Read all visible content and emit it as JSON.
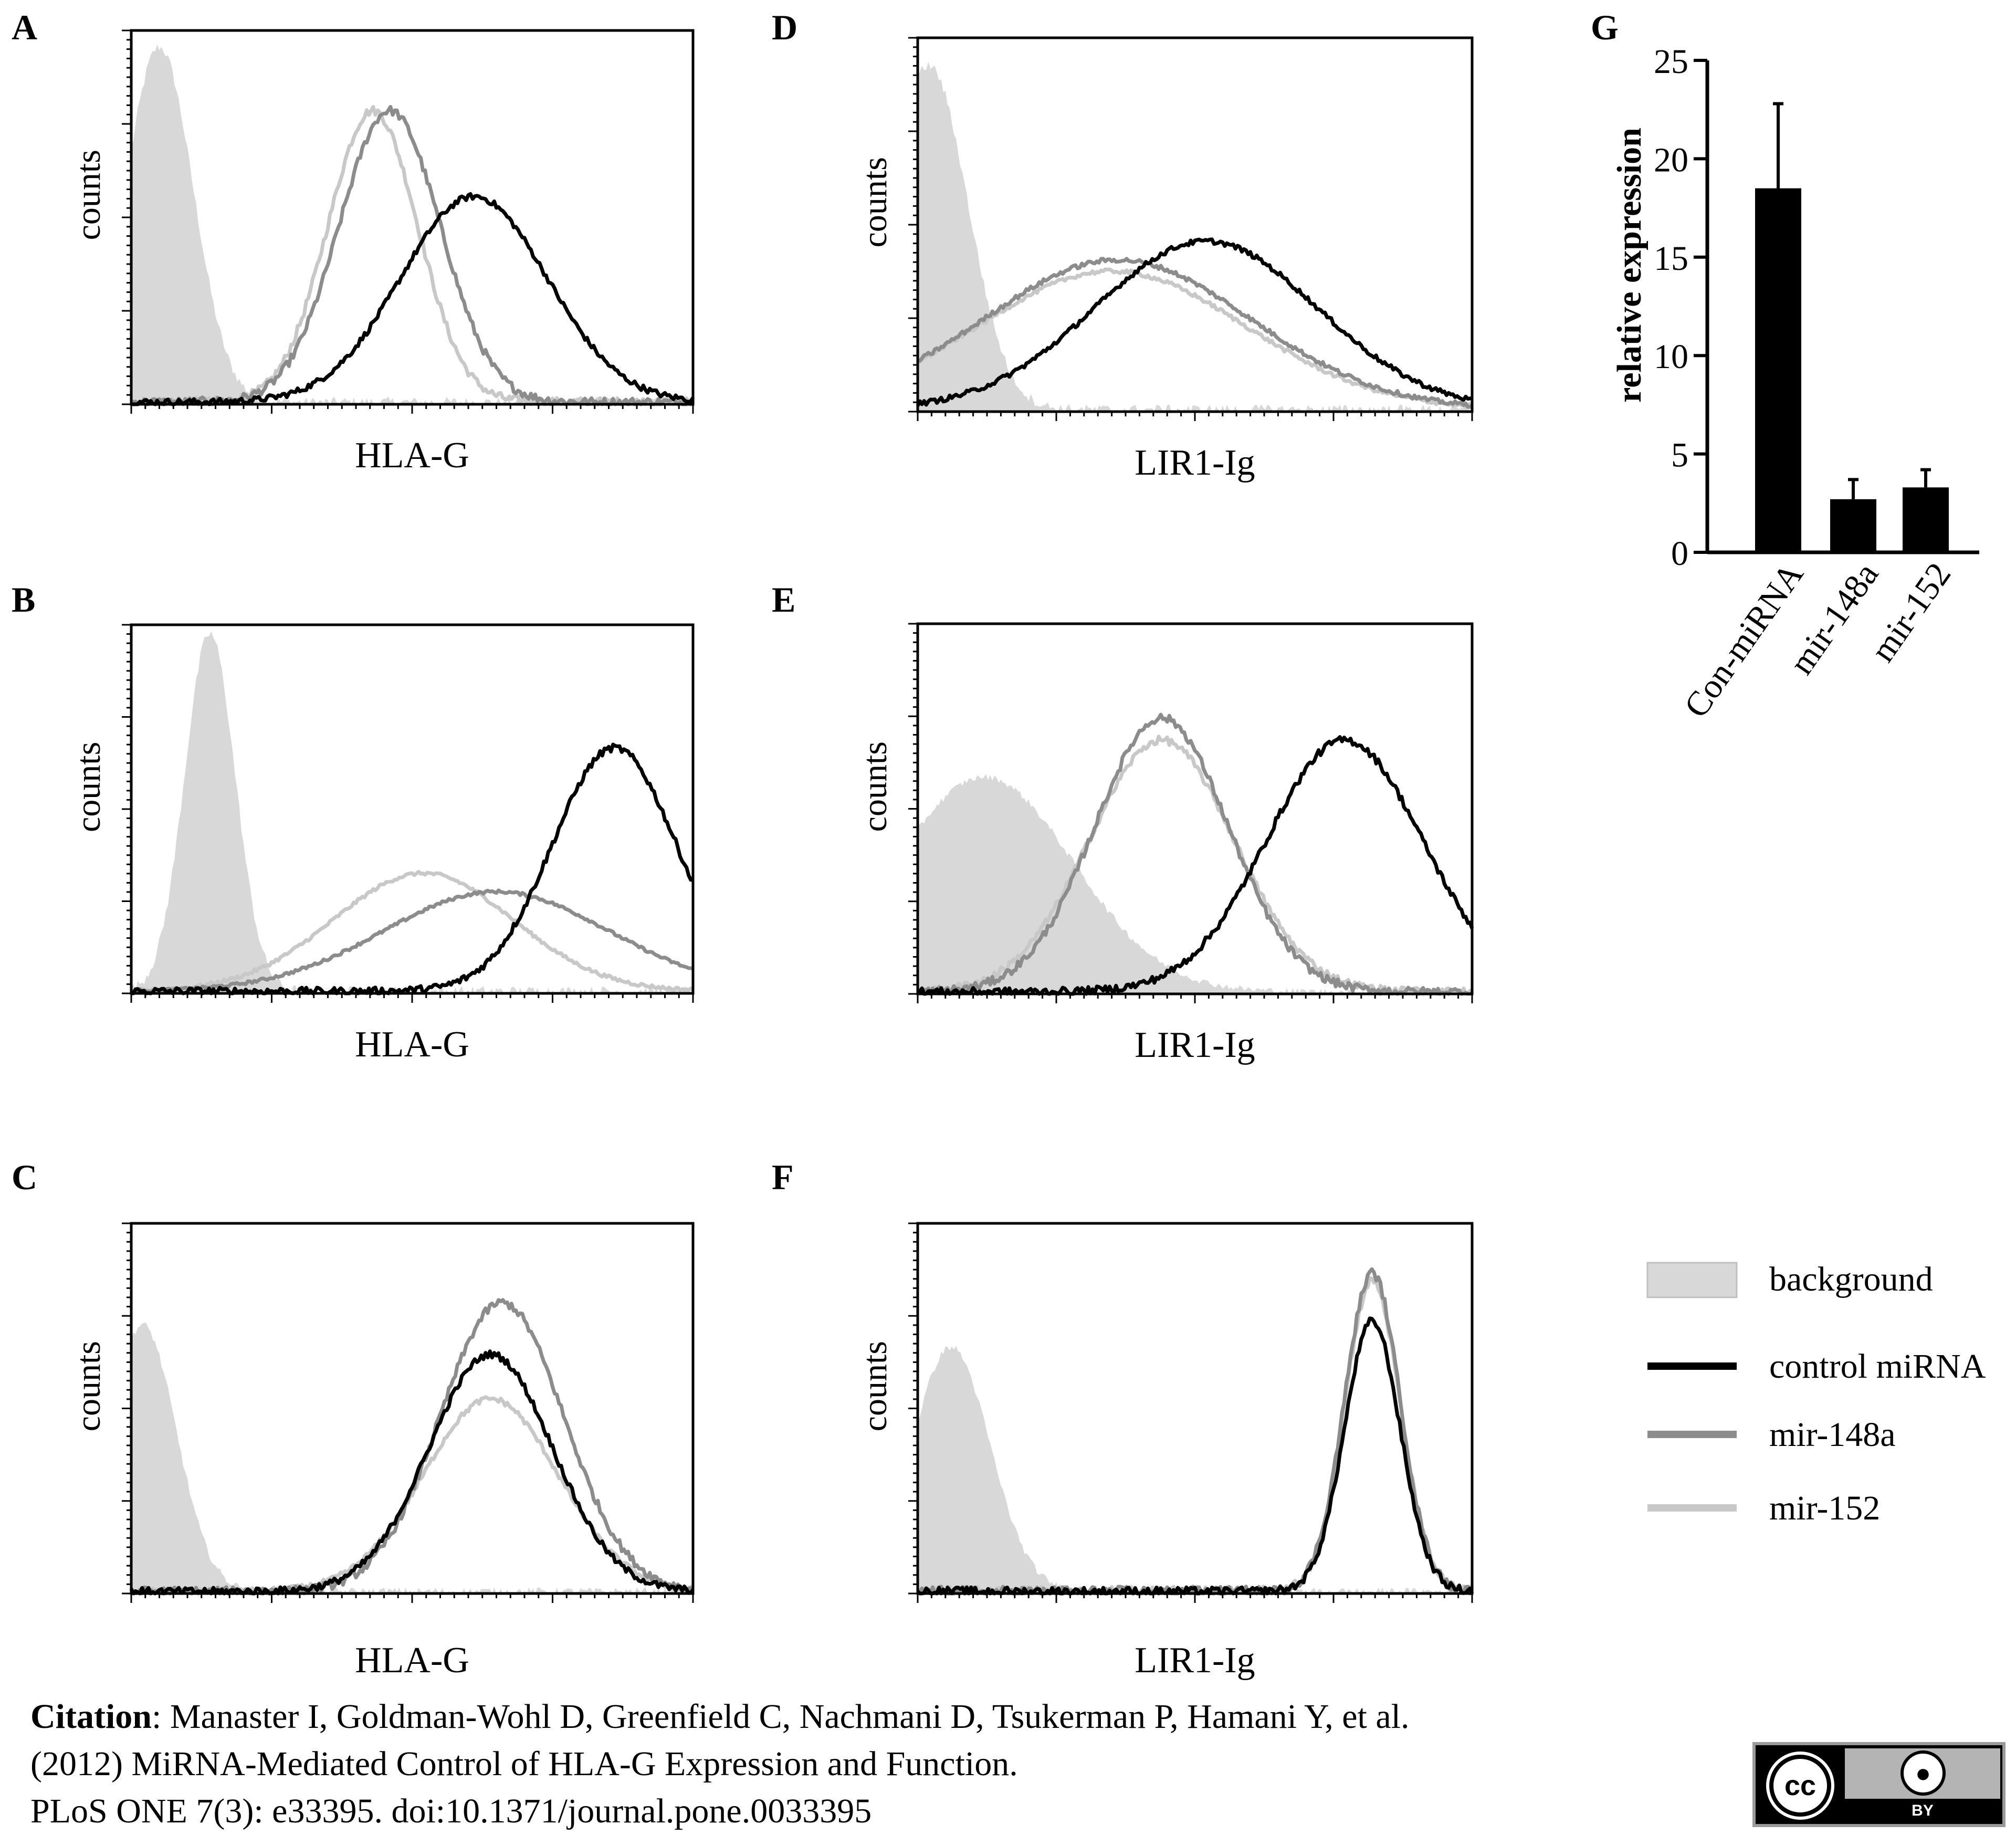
{
  "colors": {
    "background_fill": "#d8d8d8",
    "control": "#000000",
    "mir148a": "#8c8c8c",
    "mir152": "#c8c8c8",
    "bar": "#000000"
  },
  "legend": {
    "background": "background",
    "control": "control miRNA",
    "mir148a": "mir-148a",
    "mir152": "mir-152"
  },
  "citation": {
    "label": "Citation",
    "line1": ": Manaster I, Goldman-Wohl D, Greenfield C, Nachmani D, Tsukerman P, Hamani Y, et al.",
    "line2": "(2012) MiRNA-Mediated Control of HLA-G Expression and Function.",
    "line3": "PLoS ONE 7(3): e33395. doi:10.1371/journal.pone.0033395"
  },
  "license_badge": {
    "cc": "cc",
    "by": "BY"
  },
  "chart_data": [
    {
      "panel": "A",
      "type": "histogram-overlay",
      "ylabel": "counts",
      "xlabel": "HLA-G",
      "note": "background filled at left; mir-152 and mir-148a peak near the middle; control miRNA shifted right",
      "series": [
        {
          "name": "background",
          "peak": 0.05,
          "width": 0.06,
          "height": 0.95
        },
        {
          "name": "mir-152",
          "peak": 0.43,
          "width": 0.08,
          "height": 0.78
        },
        {
          "name": "mir-148a",
          "peak": 0.46,
          "width": 0.09,
          "height": 0.78
        },
        {
          "name": "control miRNA",
          "peak": 0.61,
          "width": 0.13,
          "height": 0.55
        }
      ]
    },
    {
      "panel": "B",
      "type": "histogram-overlay",
      "ylabel": "counts",
      "xlabel": "HLA-G",
      "series": [
        {
          "name": "background",
          "peak": 0.14,
          "width": 0.045,
          "height": 0.97
        },
        {
          "name": "mir-152",
          "peak": 0.52,
          "width": 0.16,
          "height": 0.32
        },
        {
          "name": "mir-148a",
          "peak": 0.65,
          "width": 0.2,
          "height": 0.27
        },
        {
          "name": "control miRNA",
          "peak": 0.86,
          "width": 0.11,
          "height": 0.66
        }
      ]
    },
    {
      "panel": "C",
      "type": "histogram-overlay",
      "ylabel": "counts",
      "xlabel": "HLA-G",
      "series": [
        {
          "name": "background",
          "peak": 0.02,
          "width": 0.06,
          "height": 0.72
        },
        {
          "name": "mir-152",
          "peak": 0.64,
          "width": 0.12,
          "height": 0.52
        },
        {
          "name": "mir-148a",
          "peak": 0.66,
          "width": 0.11,
          "height": 0.78
        },
        {
          "name": "control miRNA",
          "peak": 0.64,
          "width": 0.11,
          "height": 0.64
        }
      ]
    },
    {
      "panel": "D",
      "type": "histogram-overlay",
      "ylabel": "counts",
      "xlabel": "LIR1-Ig",
      "series": [
        {
          "name": "background",
          "peak": 0.02,
          "width": 0.07,
          "height": 0.92
        },
        {
          "name": "mir-152",
          "peak": 0.35,
          "width": 0.24,
          "height": 0.37
        },
        {
          "name": "mir-148a",
          "peak": 0.36,
          "width": 0.24,
          "height": 0.4
        },
        {
          "name": "control miRNA",
          "peak": 0.52,
          "width": 0.2,
          "height": 0.45
        }
      ]
    },
    {
      "panel": "E",
      "type": "histogram-overlay",
      "ylabel": "counts",
      "xlabel": "LIR1-Ig",
      "series": [
        {
          "name": "background",
          "peak": 0.12,
          "width": 0.16,
          "height": 0.58
        },
        {
          "name": "mir-152",
          "peak": 0.44,
          "width": 0.13,
          "height": 0.68
        },
        {
          "name": "mir-148a",
          "peak": 0.44,
          "width": 0.12,
          "height": 0.74
        },
        {
          "name": "control miRNA",
          "peak": 0.77,
          "width": 0.14,
          "height": 0.68
        }
      ]
    },
    {
      "panel": "F",
      "type": "histogram-overlay",
      "ylabel": "counts",
      "xlabel": "LIR1-Ig",
      "series": [
        {
          "name": "background",
          "peak": 0.06,
          "width": 0.07,
          "height": 0.66
        },
        {
          "name": "mir-152",
          "peak": 0.82,
          "width": 0.05,
          "height": 0.84
        },
        {
          "name": "mir-148a",
          "peak": 0.82,
          "width": 0.05,
          "height": 0.86
        },
        {
          "name": "control miRNA",
          "peak": 0.82,
          "width": 0.05,
          "height": 0.73
        }
      ]
    },
    {
      "panel": "G",
      "type": "bar",
      "ylabel": "relative expression",
      "ylim": [
        0,
        25
      ],
      "yticks": [
        "0",
        "5",
        "10",
        "15",
        "20",
        "25"
      ],
      "categories": [
        "Con-miRNA",
        "mir-148a",
        "mir-152"
      ],
      "values": [
        18.5,
        2.7,
        3.3
      ],
      "errors": [
        4.3,
        1.0,
        0.9
      ]
    }
  ]
}
